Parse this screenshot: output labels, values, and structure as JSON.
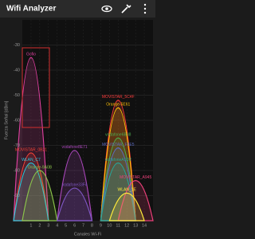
{
  "app_bar": {
    "title": "Wifi Analyzer"
  },
  "chart_data": {
    "type": "area",
    "y_label": "Fuerza Señal [dBm]",
    "x_label": "Canales Wi-Fi",
    "xlim": [
      0,
      15
    ],
    "xticks": [
      1,
      2,
      3,
      4,
      5,
      6,
      7,
      8,
      9,
      10,
      11,
      12,
      13,
      14
    ],
    "ylim": [
      -100,
      -20
    ],
    "yticks": [
      -30,
      -40,
      -50,
      -60,
      -70,
      -80,
      -90
    ],
    "grid": true,
    "series": [
      {
        "name": "Gofio",
        "color": "#e040a0",
        "channel": 1,
        "value": -35
      },
      {
        "name": "MOVISTAR_5C4F",
        "color": "#ff3b3b",
        "channel": 11,
        "value": -52
      },
      {
        "name": "Orange-5E61",
        "color": "#ffc107",
        "channel": 11,
        "value": -55
      },
      {
        "name": "vodafone6B38",
        "color": "#4caf50",
        "channel": 11,
        "value": -67
      },
      {
        "name": "MOVISTAR_F3E5",
        "color": "#5c6bc0",
        "channel": 11,
        "value": -71
      },
      {
        "name": "vodafone8E71",
        "color": "#ab47bc",
        "channel": 6,
        "value": -72
      },
      {
        "name": "MOVISTAR_0B21",
        "color": "#f44336",
        "channel": 1,
        "value": -73
      },
      {
        "name": "WLAN_C7",
        "color": "#26c6da",
        "channel": 1,
        "value": -77
      },
      {
        "name": "vodafoneA1D2",
        "color": "#26a69a",
        "channel": 11,
        "value": -77
      },
      {
        "name": "Orange-9A0B",
        "color": "#8bc34a",
        "channel": 2,
        "value": -80
      },
      {
        "name": "MOVISTAR_A945",
        "color": "#ec407a",
        "channel": 13,
        "value": -84
      },
      {
        "name": "vodafone33F4",
        "color": "#7e57c2",
        "channel": 6,
        "value": -87
      },
      {
        "name": "WLAN_1E",
        "color": "#ffeb3b",
        "channel": 12,
        "value": -89
      }
    ]
  }
}
